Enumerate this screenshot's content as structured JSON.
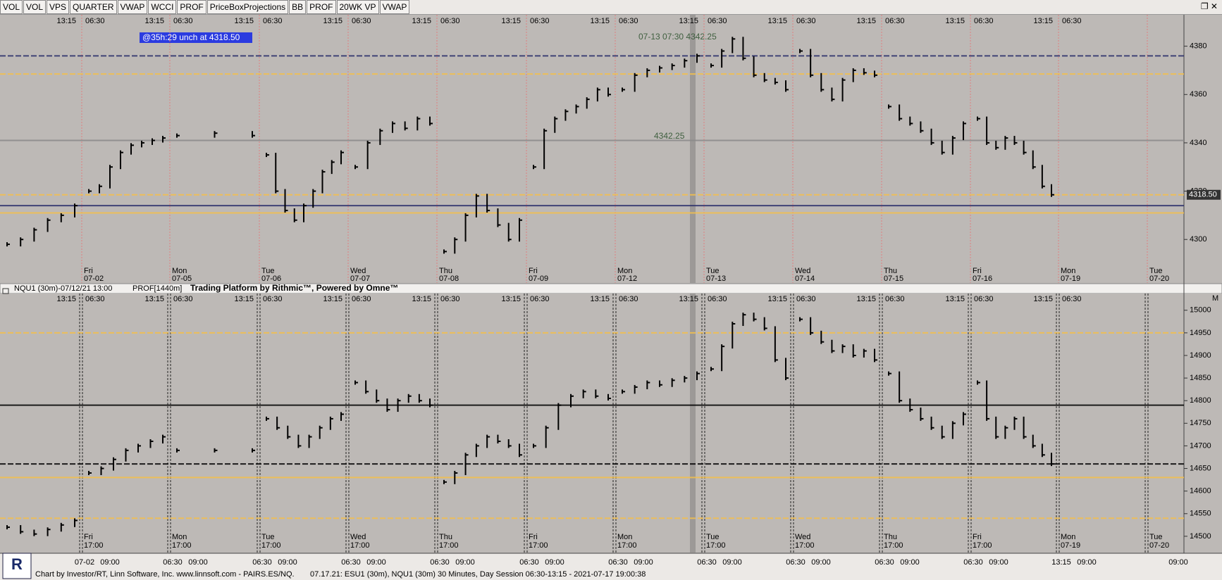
{
  "toolbar": {
    "buttons": [
      "VOL",
      "VOL",
      "VPS",
      "QUARTER",
      "VWAP",
      "WCCI",
      "PROF",
      "PriceBoxProjections",
      "BB",
      "PROF",
      "20WK VP",
      "VWAP"
    ]
  },
  "top_panel": {
    "badge": "@35h:29  unch at 4318.50",
    "annotation": "07-13 07:30  4342.25",
    "annotation_low": "4342.25",
    "ylim": [
      4282,
      4393
    ],
    "yticks": [
      4300,
      4320,
      4340,
      4360,
      4380
    ],
    "price_tag": {
      "value": 4318.5,
      "label": "4318.50"
    },
    "session_times": [
      "13:15",
      "06:30"
    ],
    "dates": [
      {
        "day": "Fri",
        "date": "07-02"
      },
      {
        "day": "Mon",
        "date": "07-05"
      },
      {
        "day": "Tue",
        "date": "07-06"
      },
      {
        "day": "Wed",
        "date": "07-07"
      },
      {
        "day": "Thu",
        "date": "07-08"
      },
      {
        "day": "Fri",
        "date": "07-09"
      },
      {
        "day": "Mon",
        "date": "07-12"
      },
      {
        "day": "Tue",
        "date": "07-13"
      },
      {
        "day": "Wed",
        "date": "07-14"
      },
      {
        "day": "Thu",
        "date": "07-15"
      },
      {
        "day": "Fri",
        "date": "07-16"
      },
      {
        "day": "Mon",
        "date": "07-19"
      },
      {
        "day": "Tue",
        "date": "07-20"
      }
    ],
    "bar_color": "#000000",
    "levels": [
      {
        "value": 4368.5,
        "color": "#f5c04a"
      },
      {
        "value": 4311,
        "color": "#f5c04a"
      },
      {
        "value": 4318.5,
        "color": "#f5c04a"
      },
      {
        "value": 4341,
        "color": "#8a8a8a"
      },
      {
        "value": 4376,
        "color": "#2b2f6b"
      },
      {
        "value": 4314,
        "color": "#2b2f6b"
      }
    ],
    "sessions": [
      [
        4298,
        4300,
        4304,
        4308,
        4310,
        4314
      ],
      [
        4320,
        4322,
        4330,
        4336,
        4339,
        4340,
        4341,
        4342
      ],
      [
        4343,
        4344,
        4343
      ],
      [
        4335,
        4320,
        4312,
        4308,
        4314,
        4320,
        4328,
        4332,
        4336
      ],
      [
        4330,
        4340,
        4345,
        4348,
        4346,
        4350,
        4348
      ],
      [
        4295,
        4300,
        4310,
        4318,
        4312,
        4306,
        4300,
        4308
      ],
      [
        4330,
        4345,
        4350,
        4353,
        4355,
        4358,
        4362,
        4360
      ],
      [
        4362,
        4368,
        4370,
        4371,
        4372,
        4374,
        4376
      ],
      [
        4372,
        4378,
        4383,
        4375,
        4368,
        4366,
        4365,
        4362
      ],
      [
        4378,
        4368,
        4362,
        4358,
        4366,
        4370,
        4369,
        4368
      ],
      [
        4355,
        4350,
        4348,
        4345,
        4340,
        4336,
        4342,
        4348
      ],
      [
        4350,
        4340,
        4338,
        4342,
        4340,
        4336,
        4330,
        4322,
        4318.5
      ]
    ]
  },
  "separator": {
    "symbol": "NQU1 (30m)-07/12/21 13:00",
    "study": "PROF[1440m]",
    "title": "Trading Platform by Rithmic™, Powered by Omne™"
  },
  "bottom_panel": {
    "ylim": [
      14464,
      15037
    ],
    "yticks": [
      14500,
      14550,
      14600,
      14650,
      14700,
      14750,
      14800,
      14850,
      14900,
      14950,
      15000
    ],
    "corner": "M",
    "session_end": "17:00",
    "bar_color": "#000000",
    "levels": [
      {
        "value": 14950,
        "color": "#f5c04a"
      },
      {
        "value": 14630,
        "color": "#f5c04a"
      },
      {
        "value": 14540,
        "color": "#f5c04a"
      },
      {
        "value": 14790,
        "color": "#000000"
      },
      {
        "value": 14660,
        "color": "#000000"
      }
    ],
    "axis_labels": [
      "07-02",
      "09:00",
      "06:30",
      "09:00",
      "06:30",
      "09:00",
      "06:30",
      "09:00",
      "06:30",
      "09:00",
      "06:30",
      "09:00",
      "06:30",
      "09:00",
      "06:30",
      "09:00",
      "06:30",
      "09:00",
      "06:30",
      "09:00",
      "06:30",
      "09:00",
      "13:15",
      "09:00",
      "09:00"
    ],
    "sessions": [
      [
        14520,
        14510,
        14505,
        14515,
        14525,
        14535
      ],
      [
        14640,
        14650,
        14670,
        14690,
        14700,
        14710,
        14720
      ],
      [
        14690,
        14690,
        14690
      ],
      [
        14760,
        14740,
        14720,
        14700,
        14720,
        14740,
        14760,
        14770
      ],
      [
        14840,
        14820,
        14800,
        14780,
        14800,
        14810,
        14800,
        14790
      ],
      [
        14620,
        14640,
        14680,
        14700,
        14720,
        14710,
        14700,
        14680
      ],
      [
        14700,
        14740,
        14790,
        14810,
        14820,
        14810,
        14805
      ],
      [
        14820,
        14830,
        14840,
        14835,
        14845,
        14850,
        14860
      ],
      [
        14870,
        14920,
        14970,
        14990,
        14980,
        14960,
        14890,
        14850
      ],
      [
        14980,
        14950,
        14930,
        14910,
        14920,
        14900,
        14910,
        14890
      ],
      [
        14860,
        14800,
        14780,
        14760,
        14740,
        14720,
        14750,
        14770
      ],
      [
        14840,
        14760,
        14720,
        14740,
        14760,
        14720,
        14700,
        14680,
        14660
      ]
    ]
  },
  "footer": {
    "credit": "Chart by Investor/RT, Linn Software, Inc. www.linnsoft.com - PAIRS.ES/NQ.",
    "details": "07.17.21: ESU1 (30m), NQU1 (30m) 30 Minutes, Day Session 06:30-13:15 - 2021-07-17 19:00:38"
  }
}
